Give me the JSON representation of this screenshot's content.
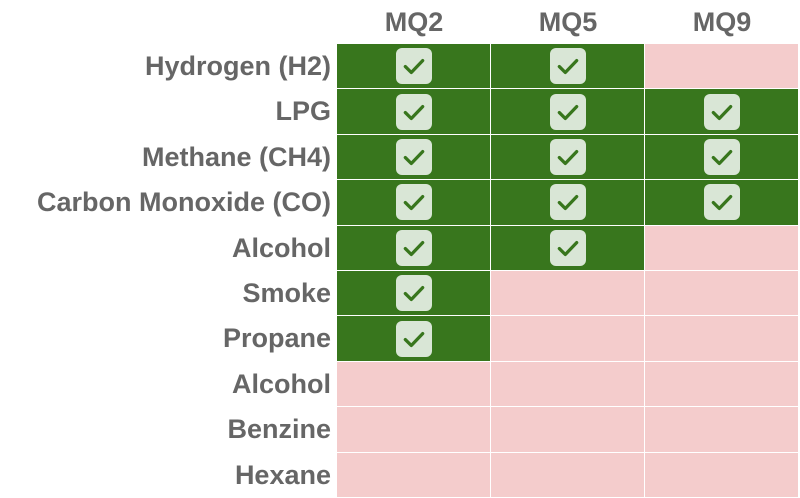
{
  "chart_data": {
    "type": "table",
    "title": "",
    "columns": [
      "MQ2",
      "MQ5",
      "MQ9"
    ],
    "rows": [
      "Hydrogen (H2)",
      "LPG",
      "Methane (CH4)",
      "Carbon Monoxide (CO)",
      "Alcohol",
      "Smoke",
      "Propane",
      "Alcohol",
      "Benzine",
      "Hexane"
    ],
    "values": [
      [
        true,
        true,
        false
      ],
      [
        true,
        true,
        true
      ],
      [
        true,
        true,
        true
      ],
      [
        true,
        true,
        true
      ],
      [
        true,
        true,
        false
      ],
      [
        true,
        false,
        false
      ],
      [
        true,
        false,
        false
      ],
      [
        false,
        false,
        false
      ],
      [
        false,
        false,
        false
      ],
      [
        false,
        false,
        false
      ]
    ],
    "legend": "none",
    "grid": true
  },
  "colors": {
    "supported": "#38761d",
    "unsupported": "#f4cccc",
    "check_bg": "#d9e6d6",
    "check_mark": "#38761d",
    "label_text": "#666666"
  },
  "icons": {
    "supported": "check-icon"
  }
}
